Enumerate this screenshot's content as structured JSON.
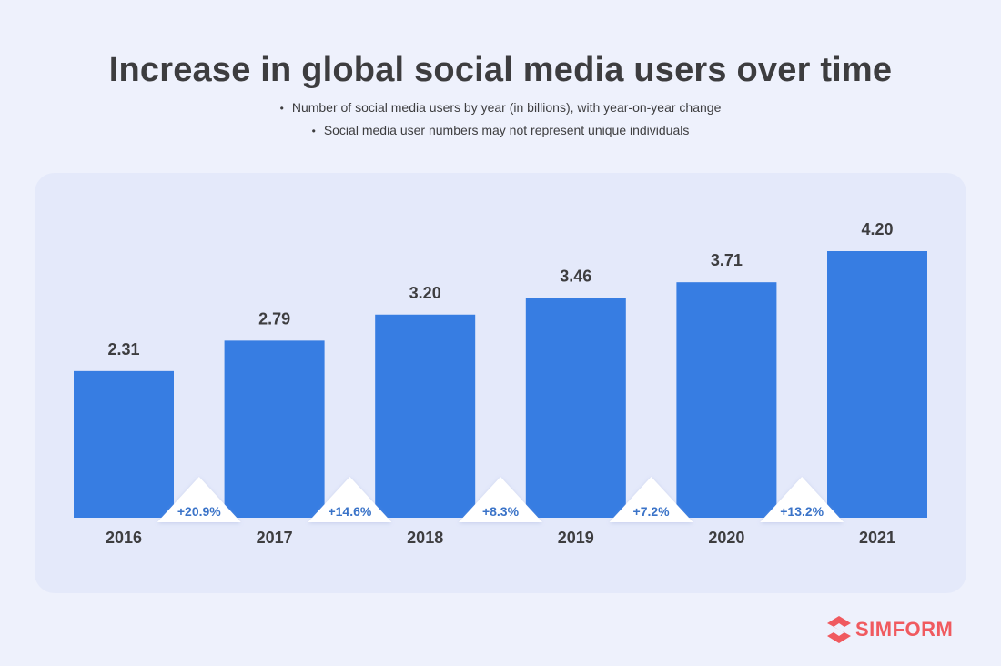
{
  "title": "Increase in global social media users over time",
  "subtitle_lines": [
    "Number of social media users by year (in billions), with year-on-year change",
    "Social media user numbers may not represent unique individuals"
  ],
  "bullet_char": "•",
  "logo_text": "SIMFORM",
  "colors": {
    "bar": "#377de2",
    "change_label": "#3a73c8",
    "logo": "#f05a5f",
    "text": "#3d3d3f"
  },
  "chart_data": {
    "type": "bar",
    "categories": [
      "2016",
      "2017",
      "2018",
      "2019",
      "2020",
      "2021"
    ],
    "values": [
      2.31,
      2.79,
      3.2,
      3.46,
      3.71,
      4.2
    ],
    "value_labels": [
      "2.31",
      "2.79",
      "3.20",
      "3.46",
      "3.71",
      "4.20"
    ],
    "changes": [
      "+20.9%",
      "+14.6%",
      "+8.3%",
      "+7.2%",
      "+13.2%"
    ],
    "title": "Increase in global social media users over time",
    "xlabel": "",
    "ylabel": "",
    "ylim": [
      0,
      4.2
    ],
    "grid": false,
    "legend": "none"
  }
}
